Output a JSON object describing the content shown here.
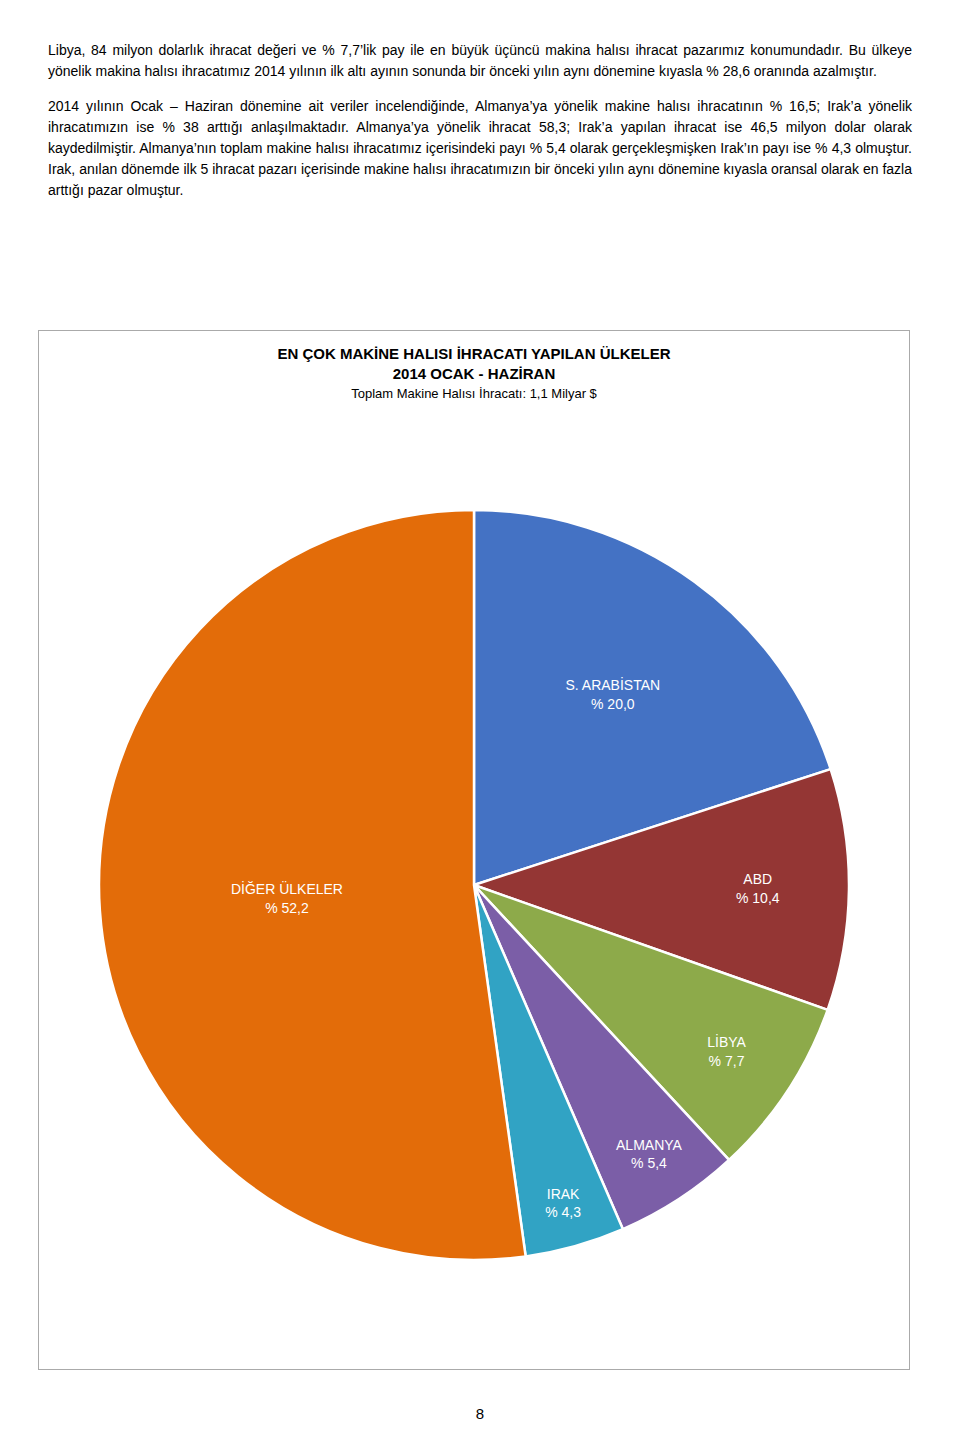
{
  "chart_data": {
    "type": "pie",
    "title": "EN ÇOK MAKİNE HALISI İHRACATI YAPILAN ÜLKELER\n2014 OCAK - HAZİRAN",
    "subtitle": "Toplam Makine Halısı İhracatı: 1,1 Milyar $",
    "categories": [
      "S. ARABİSTAN",
      "ABD",
      "LİBYA",
      "ALMANYA",
      "IRAK",
      "DİĞER ÜLKELER"
    ],
    "values": [
      20.0,
      10.4,
      7.7,
      5.4,
      4.3,
      52.2
    ],
    "value_labels": [
      "% 20,0",
      "% 10,4",
      "% 7,7",
      "% 5,4",
      "% 4,3",
      "% 52,2"
    ],
    "colors": [
      "#4472C4",
      "#943634",
      "#8DAA4A",
      "#7B5EA7",
      "#31A3C4",
      "#E36C09"
    ],
    "data_labels": true
  },
  "body_paragraphs": [
    "Libya, 84 milyon dolarlık ihracat değeri ve % 7,7’lik pay ile en büyük üçüncü makina halısı ihracat pazarımız konumundadır. Bu ülkeye yönelik makina halısı ihracatımız 2014 yılının ilk altı ayının sonunda bir önceki yılın aynı dönemine kıyasla % 28,6 oranında azalmıştır.",
    "2014 yılının Ocak – Haziran dönemine ait veriler incelendiğinde, Almanya’ya yönelik makine halısı ihracatının % 16,5; Irak’a yönelik ihracatımızın ise % 38 arttığı anlaşılmaktadır. Almanya’ya yönelik ihracat 58,3; Irak’a yapılan ihracat ise 46,5 milyon dolar olarak kaydedilmiştir. Almanya’nın toplam makine halısı ihracatımız içerisindeki payı % 5,4 olarak gerçekleşmişken Irak’ın payı ise % 4,3 olmuştur. Irak, anılan dönemde ilk 5 ihracat pazarı içerisinde makine halısı ihracatımızın bir önceki yılın aynı dönemine kıyasla oransal olarak en fazla arttığı pazar olmuştur."
  ],
  "page_number": "8"
}
